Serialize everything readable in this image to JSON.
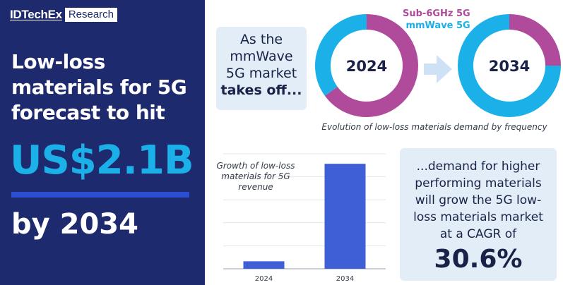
{
  "branding": {
    "name": "IDTechEx",
    "tag": "Research"
  },
  "headline": {
    "title": "Low-loss materials for 5G forecast to hit",
    "value": "US$2.1B",
    "year": "by 2034"
  },
  "callout_top": {
    "line1": "As the",
    "line2": "mmWave",
    "line3": "5G market",
    "bold": "takes off..."
  },
  "callout_bottom": {
    "text": "...demand for higher performing materials will grow the 5G low-loss materials market at a CAGR of",
    "value": "30.6%"
  },
  "colors": {
    "navy": "#1e2a6e",
    "cyan": "#1bb0e8",
    "magenta": "#b04a9a",
    "bar_blue": "#3f5fd6",
    "panel": "#e3edf8"
  },
  "icons": {
    "arrow": "right-arrow-icon"
  },
  "chart_data": [
    {
      "type": "pie",
      "subtype": "donut",
      "title": "Evolution of low-loss materials demand by frequency",
      "legend": [
        "Sub-6GHz 5G",
        "mmWave 5G"
      ],
      "legend_placement": "top",
      "charts": [
        {
          "label": "2024",
          "slices": [
            {
              "name": "Sub-6GHz 5G",
              "value": 65
            },
            {
              "name": "mmWave 5G",
              "value": 35
            }
          ]
        },
        {
          "label": "2034",
          "slices": [
            {
              "name": "Sub-6GHz 5G",
              "value": 25
            },
            {
              "name": "mmWave 5G",
              "value": 75
            }
          ]
        }
      ]
    },
    {
      "type": "bar",
      "title": "Growth of low-loss materials for 5G revenue",
      "categories": [
        "2024",
        "2034"
      ],
      "values": [
        0.15,
        2.1
      ],
      "ylim": [
        0,
        2.3
      ],
      "grid": true,
      "xlabel": "",
      "ylabel": ""
    }
  ]
}
